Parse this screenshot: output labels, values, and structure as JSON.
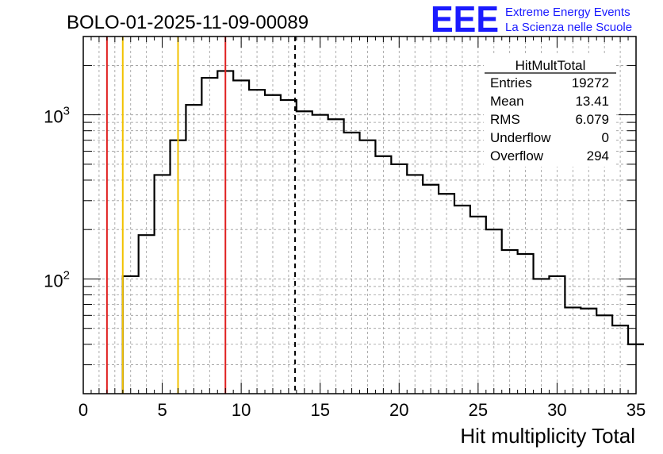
{
  "header": {
    "run_title": "BOLO-01-2025-11-09-00089",
    "logo_text": "EEE",
    "logo_line1": "Extreme Energy Events",
    "logo_line2": "La Scienza nelle Scuole",
    "brand_color": "#1a1aff"
  },
  "stats": {
    "name": "HitMultTotal",
    "rows": [
      {
        "label": "Entries",
        "value": "19272"
      },
      {
        "label": "Mean",
        "value": "13.41"
      },
      {
        "label": "RMS",
        "value": "6.079"
      },
      {
        "label": "Underflow",
        "value": "0"
      },
      {
        "label": "Overflow",
        "value": "294"
      }
    ]
  },
  "chart_data": {
    "type": "histogram",
    "title": "BOLO-01-2025-11-09-00089",
    "xlabel": "Hit multiplicity Total",
    "ylabel": "",
    "xlim": [
      0,
      35
    ],
    "ylim": [
      20,
      3000
    ],
    "yscale": "log",
    "grid": true,
    "bins": {
      "edges_start": 2.5,
      "bin_width": 1,
      "counts": [
        104,
        185,
        430,
        700,
        1150,
        1680,
        1850,
        1620,
        1420,
        1320,
        1230,
        1050,
        1000,
        940,
        780,
        700,
        560,
        500,
        430,
        375,
        330,
        280,
        240,
        200,
        150,
        142,
        100,
        104,
        67,
        66,
        60,
        52,
        40
      ]
    },
    "x_ticks": [
      0,
      5,
      10,
      15,
      20,
      25,
      30,
      35
    ],
    "y_ticks": [
      {
        "value": 100,
        "base": "10",
        "exp": "2"
      },
      {
        "value": 1000,
        "base": "10",
        "exp": "3"
      }
    ],
    "reference_lines": [
      {
        "x": 1.5,
        "color": "#e02020",
        "style": "solid"
      },
      {
        "x": 2.5,
        "color": "#f2c200",
        "style": "solid"
      },
      {
        "x": 6.0,
        "color": "#f2c200",
        "style": "solid"
      },
      {
        "x": 9.0,
        "color": "#e02020",
        "style": "solid"
      },
      {
        "x": 13.41,
        "color": "#000000",
        "style": "dashed"
      }
    ]
  }
}
